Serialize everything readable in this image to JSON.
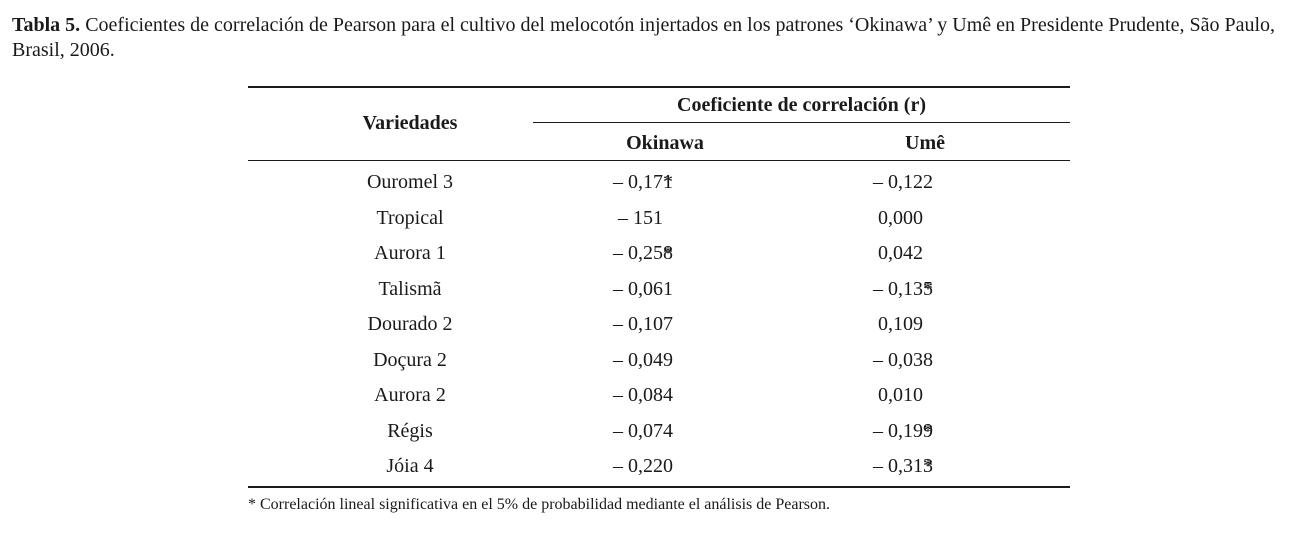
{
  "caption": {
    "label": "Tabla 5.",
    "text": "Coeficientes de correlación de Pearson para el cultivo del melocotón injertados en los patrones ‘Okinawa’ y Umê en Presidente Prudente, São Paulo, Brasil, 2006."
  },
  "table": {
    "header_variedades": "Variedades",
    "header_group": "Coeficiente de correlación (r)",
    "header_okinawa": "Okinawa",
    "header_ume": "Umê",
    "rows": [
      {
        "variedad": "Ouromel 3",
        "okinawa": "–  0,171",
        "okinawa_mark": "*",
        "ume": "– 0,122",
        "ume_mark": ""
      },
      {
        "variedad": "Tropical",
        "okinawa": "– 151",
        "okinawa_mark": "",
        "ume": "0,000",
        "ume_mark": ""
      },
      {
        "variedad": "Aurora 1",
        "okinawa": "– 0,258",
        "okinawa_mark": "*",
        "ume": "0,042",
        "ume_mark": ""
      },
      {
        "variedad": "Talismã",
        "okinawa": "– 0,061",
        "okinawa_mark": "",
        "ume": "– 0,135",
        "ume_mark": "*"
      },
      {
        "variedad": "Dourado 2",
        "okinawa": "– 0,107",
        "okinawa_mark": "",
        "ume": "0,109",
        "ume_mark": ""
      },
      {
        "variedad": "Doçura 2",
        "okinawa": "– 0,049",
        "okinawa_mark": "",
        "ume": "– 0,038",
        "ume_mark": ""
      },
      {
        "variedad": "Aurora 2",
        "okinawa": "– 0,084",
        "okinawa_mark": "",
        "ume": "0,010",
        "ume_mark": ""
      },
      {
        "variedad": "Régis",
        "okinawa": "– 0,074",
        "okinawa_mark": "",
        "ume": "– 0,199",
        "ume_mark": "*"
      },
      {
        "variedad": "Jóia 4",
        "okinawa": "– 0,220",
        "okinawa_mark": "",
        "ume": "– 0,313",
        "ume_mark": "*"
      }
    ]
  },
  "footnote": "* Correlación lineal significativa en el 5% de probabilidad mediante el análisis de Pearson."
}
